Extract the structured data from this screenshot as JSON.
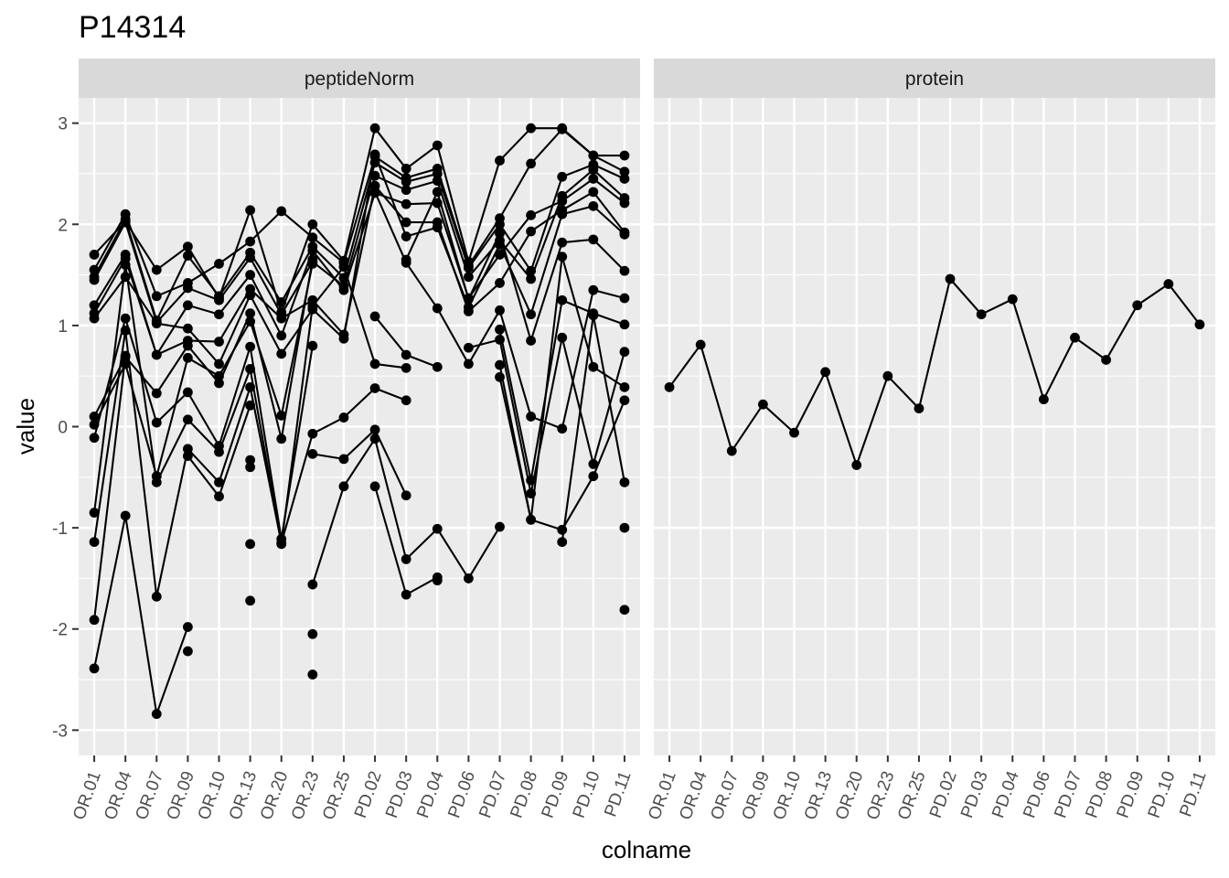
{
  "chart_data": {
    "type": "line",
    "title": "P14314",
    "xlabel": "colname",
    "ylabel": "value",
    "ylim": [
      -3.25,
      3.25
    ],
    "yticks": [
      -3,
      -2,
      -1,
      0,
      1,
      2,
      3
    ],
    "categories": [
      "OR.01",
      "OR.04",
      "OR.07",
      "OR.09",
      "OR.10",
      "OR.13",
      "OR.20",
      "OR.23",
      "OR.25",
      "PD.02",
      "PD.03",
      "PD.04",
      "PD.06",
      "PD.07",
      "PD.08",
      "PD.09",
      "PD.10",
      "PD.11"
    ],
    "facets": [
      "peptideNorm",
      "protein"
    ],
    "grid": true,
    "colors": {
      "panel_bg": "#ebebeb",
      "strip_bg": "#d9d9d9",
      "grid": "#ffffff",
      "ink": "#000000",
      "tick": "#333333"
    },
    "panels": [
      {
        "facet": "peptideNorm",
        "series": [
          {
            "values": [
              1.7,
              2.03,
              1.55,
              1.78,
              1.27,
              2.14,
              1.13,
              2.0,
              1.64,
              2.95,
              2.55,
              2.78,
              1.63,
              2.63,
              2.95,
              2.95,
              2.68,
              2.68
            ]
          },
          {
            "values": [
              1.55,
              2.1,
              1.29,
              1.42,
              1.61,
              1.83,
              2.13,
              1.87,
              1.62,
              2.67,
              2.46,
              2.55,
              1.59,
              2.06,
              2.6,
              2.94,
              2.68,
              2.52
            ]
          },
          {
            "values": [
              1.48,
              2.05,
              1.05,
              1.69,
              1.29,
              1.72,
              1.23,
              1.78,
              1.47,
              2.61,
              2.42,
              2.5,
              1.57,
              2.0,
              1.54,
              2.47,
              2.59,
              2.45
            ]
          },
          {
            "values": [
              1.45,
              2.02,
              1.03,
              1.37,
              1.25,
              1.67,
              1.11,
              1.63,
              1.39,
              2.48,
              2.34,
              2.43,
              1.48,
              1.84,
              1.46,
              2.28,
              2.54,
              2.26
            ]
          },
          {
            "values": [
              1.2,
              1.7,
              0.71,
              1.2,
              1.11,
              1.5,
              0.9,
              1.74,
              1.35,
              2.31,
              2.2,
              2.21,
              1.27,
              1.7,
              2.09,
              2.23,
              2.45,
              2.21
            ]
          },
          {
            "values": [
              1.12,
              1.66,
              0.71,
              0.85,
              0.84,
              1.36,
              1.07,
              1.25,
              0.91,
              2.38,
              2.02,
              2.02,
              1.14,
              1.42,
              1.93,
              2.14,
              2.32,
              1.92
            ]
          },
          {
            "values": [
              1.07,
              1.48,
              1.02,
              0.97,
              0.62,
              1.3,
              0.72,
              1.16,
              0.87,
              2.69,
              1.88,
              1.97,
              1.18,
              1.8,
              1.11,
              2.1,
              2.18,
              1.9
            ]
          },
          {
            "values": [
              0.1,
              0.69,
              0.33,
              0.8,
              0.43,
              1.12,
              -0.12,
              1.65,
              null,
              null,
              1.65,
              2.32,
              1.26,
              1.91,
              0.85,
              1.82,
              1.85,
              1.54
            ]
          },
          {
            "values": [
              0.02,
              0.62,
              -0.49,
              0.68,
              0.5,
              1.04,
              0.11,
              1.61,
              null,
              2.32,
              1.62,
              1.17,
              0.62,
              1.15,
              0.1,
              -0.02,
              1.35,
              1.27
            ]
          },
          {
            "values": [
              -0.11,
              1.07,
              0.04,
              0.34,
              -0.19,
              0.79,
              -1.11,
              0.8,
              null,
              1.09,
              0.71,
              0.59,
              null,
              0.96,
              -0.53,
              1.25,
              1.12,
              1.01
            ]
          },
          {
            "values": [
              -0.85,
              1.6,
              -0.55,
              0.07,
              -0.25,
              0.57,
              -1.16,
              1.19,
              1.58,
              0.62,
              0.58,
              null,
              0.78,
              0.86,
              -0.66,
              0.88,
              -0.37,
              0.74
            ]
          },
          {
            "values": [
              -1.14,
              0.95,
              -1.68,
              -0.22,
              -0.55,
              0.39,
              -1.15,
              -0.07,
              0.09,
              0.38,
              0.26,
              null,
              null,
              0.61,
              -0.92,
              1.68,
              0.59,
              0.39
            ]
          },
          {
            "values": [
              -1.91,
              0.7,
              null,
              -0.29,
              -0.69,
              0.21,
              null,
              -0.27,
              -0.32,
              -0.03,
              -0.68,
              null,
              null,
              0.49,
              -0.92,
              -1.02,
              -0.49,
              0.26
            ]
          },
          {
            "values": [
              -2.39,
              -0.88,
              -2.84,
              -1.98,
              null,
              -0.33,
              null,
              -1.56,
              -0.59,
              -0.12,
              -1.31,
              -1.01,
              -1.5,
              -0.99,
              null,
              -1.14,
              1.1,
              -0.55
            ]
          },
          {
            "values": [
              null,
              null,
              null,
              -2.22,
              null,
              -0.4,
              null,
              -2.05,
              null,
              -0.59,
              -1.66,
              -1.49,
              null,
              null,
              null,
              null,
              null,
              -1.0
            ]
          },
          {
            "values": [
              null,
              null,
              null,
              null,
              null,
              -1.16,
              null,
              -2.45,
              null,
              null,
              null,
              -1.52,
              null,
              null,
              null,
              null,
              null,
              -1.81
            ]
          },
          {
            "values": [
              null,
              null,
              null,
              null,
              null,
              -1.72,
              null,
              null,
              null,
              null,
              null,
              null,
              null,
              null,
              null,
              null,
              null,
              null
            ]
          }
        ]
      },
      {
        "facet": "protein",
        "series": [
          {
            "values": [
              0.39,
              0.81,
              -0.24,
              0.22,
              -0.06,
              0.54,
              -0.38,
              0.5,
              0.18,
              1.46,
              1.11,
              1.26,
              0.27,
              0.88,
              0.66,
              1.2,
              1.41,
              1.01
            ]
          }
        ]
      }
    ]
  }
}
